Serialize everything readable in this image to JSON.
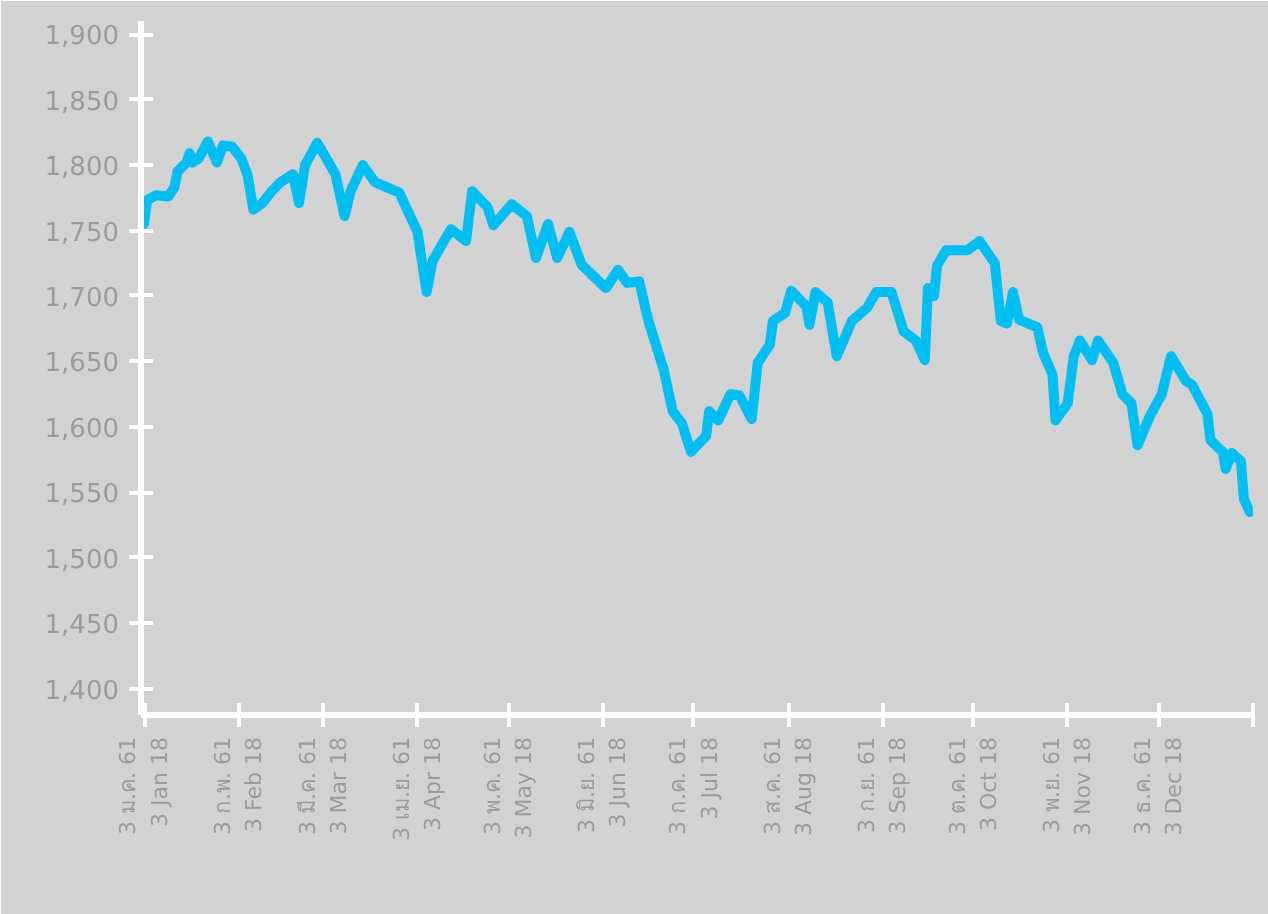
{
  "chart_data": {
    "type": "line",
    "grid": false,
    "line_style": "solid",
    "marker": "none",
    "x": [
      "2018-01-03",
      "2018-01-04",
      "2018-01-07",
      "2018-01-11",
      "2018-01-13",
      "2018-01-14",
      "2018-01-17",
      "2018-01-18",
      "2018-01-19",
      "2018-01-21",
      "2018-01-24",
      "2018-01-27",
      "2018-01-29",
      "2018-02-01",
      "2018-02-04",
      "2018-02-06",
      "2018-02-08",
      "2018-02-11",
      "2018-02-14",
      "2018-02-17",
      "2018-02-21",
      "2018-02-23",
      "2018-02-25",
      "2018-03-01",
      "2018-03-04",
      "2018-03-07",
      "2018-03-10",
      "2018-03-12",
      "2018-03-16",
      "2018-03-20",
      "2018-03-24",
      "2018-03-28",
      "2018-03-31",
      "2018-04-03",
      "2018-04-06",
      "2018-04-08",
      "2018-04-14",
      "2018-04-19",
      "2018-04-21",
      "2018-04-26",
      "2018-04-28",
      "2018-05-04",
      "2018-05-09",
      "2018-05-12",
      "2018-05-16",
      "2018-05-19",
      "2018-05-23",
      "2018-05-27",
      "2018-06-04",
      "2018-06-08",
      "2018-06-11",
      "2018-06-15",
      "2018-06-18",
      "2018-06-23",
      "2018-06-26",
      "2018-06-29",
      "2018-07-02",
      "2018-07-07",
      "2018-07-08",
      "2018-07-11",
      "2018-07-15",
      "2018-07-18",
      "2018-07-22",
      "2018-07-24",
      "2018-07-28",
      "2018-07-29",
      "2018-08-02",
      "2018-08-04",
      "2018-08-09",
      "2018-08-10",
      "2018-08-12",
      "2018-08-16",
      "2018-08-19",
      "2018-08-24",
      "2018-08-29",
      "2018-09-01",
      "2018-09-06",
      "2018-09-10",
      "2018-09-14",
      "2018-09-17",
      "2018-09-18",
      "2018-09-20",
      "2018-09-21",
      "2018-09-24",
      "2018-10-01",
      "2018-10-05",
      "2018-10-10",
      "2018-10-12",
      "2018-10-14",
      "2018-10-16",
      "2018-10-18",
      "2018-10-24",
      "2018-10-26",
      "2018-10-29",
      "2018-10-30",
      "2018-11-03",
      "2018-11-05",
      "2018-11-07",
      "2018-11-11",
      "2018-11-13",
      "2018-11-18",
      "2018-11-21",
      "2018-11-24",
      "2018-11-26",
      "2018-11-30",
      "2018-12-04",
      "2018-12-07",
      "2018-12-12",
      "2018-12-14",
      "2018-12-19",
      "2018-12-20",
      "2018-12-24",
      "2018-12-25",
      "2018-12-27",
      "2018-12-30",
      "2018-12-31",
      "2019-01-02"
    ],
    "series": [
      {
        "color": "#00bdf2",
        "values": [
          1755,
          1773,
          1777,
          1776,
          1783,
          1795,
          1802,
          1809,
          1802,
          1805,
          1818,
          1802,
          1815,
          1814,
          1805,
          1793,
          1766,
          1771,
          1780,
          1787,
          1793,
          1771,
          1800,
          1817,
          1805,
          1793,
          1761,
          1780,
          1800,
          1787,
          1783,
          1779,
          1764,
          1749,
          1703,
          1727,
          1751,
          1742,
          1780,
          1768,
          1754,
          1770,
          1761,
          1729,
          1755,
          1729,
          1749,
          1724,
          1706,
          1720,
          1710,
          1711,
          1681,
          1644,
          1612,
          1603,
          1581,
          1593,
          1612,
          1605,
          1625,
          1624,
          1606,
          1649,
          1663,
          1681,
          1687,
          1704,
          1692,
          1678,
          1703,
          1695,
          1654,
          1681,
          1691,
          1703,
          1703,
          1673,
          1666,
          1651,
          1706,
          1700,
          1723,
          1735,
          1735,
          1742,
          1725,
          1681,
          1679,
          1703,
          1682,
          1676,
          1656,
          1640,
          1605,
          1618,
          1654,
          1666,
          1651,
          1666,
          1649,
          1625,
          1618,
          1586,
          1608,
          1625,
          1654,
          1635,
          1632,
          1610,
          1590,
          1581,
          1568,
          1580,
          1574,
          1545,
          1535
        ]
      }
    ],
    "xlim": [
      "2018-01-02",
      "2019-01-03"
    ],
    "xticks": [
      {
        "value": "2018-01-03",
        "label": "3 ม.ค. 61\n3 Jan 18"
      },
      {
        "value": "2018-02-03",
        "label": "3 ก.พ. 61\n3 Feb 18"
      },
      {
        "value": "2018-03-03",
        "label": "3 มี.ค. 61\n3 Mar 18"
      },
      {
        "value": "2018-04-03",
        "label": "3 เม.ย. 61\n3 Apr 18"
      },
      {
        "value": "2018-05-03",
        "label": "3 พ.ค. 61\n3 May 18"
      },
      {
        "value": "2018-06-03",
        "label": "3 มิ.ย. 61\n3 Jun 18"
      },
      {
        "value": "2018-07-03",
        "label": "3 ก.ค. 61\n3 Jul 18"
      },
      {
        "value": "2018-08-03",
        "label": "3 ส.ค. 61\n3 Aug 18"
      },
      {
        "value": "2018-09-03",
        "label": "3 ก.ย. 61\n3 Sep 18"
      },
      {
        "value": "2018-10-03",
        "label": "3 ต.ค. 61\n3 Oct 18"
      },
      {
        "value": "2018-11-03",
        "label": "3 พ.ย. 61\n3 Nov 18"
      },
      {
        "value": "2018-12-03",
        "label": "3 ธ.ค. 61\n3 Dec 18"
      },
      {
        "value": "2019-01-03",
        "label": null
      }
    ],
    "ylim": [
      1380,
      1910
    ],
    "yticks": [
      {
        "value": 1400,
        "label": "1,400"
      },
      {
        "value": 1450,
        "label": "1,450"
      },
      {
        "value": 1500,
        "label": "1,500"
      },
      {
        "value": 1550,
        "label": "1,550"
      },
      {
        "value": 1600,
        "label": "1,600"
      },
      {
        "value": 1650,
        "label": "1,650"
      },
      {
        "value": 1700,
        "label": "1,700"
      },
      {
        "value": 1750,
        "label": "1,750"
      },
      {
        "value": 1800,
        "label": "1,800"
      },
      {
        "value": 1850,
        "label": "1,850"
      },
      {
        "value": 1900,
        "label": "1,900"
      }
    ]
  }
}
